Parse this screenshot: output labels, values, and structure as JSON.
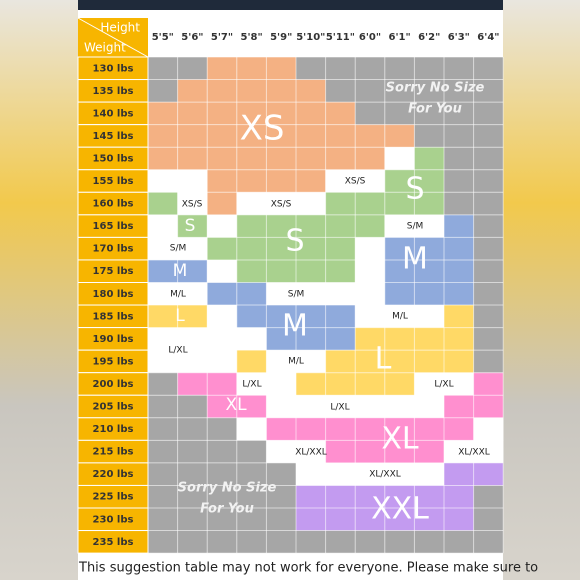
{
  "corner": {
    "height": "Height",
    "weight": "Weight"
  },
  "columns": [
    "5'5\"",
    "5'6\"",
    "5'7\"",
    "5'8\"",
    "5'9\"",
    "5'10\"",
    "5'11\"",
    "6'0\"",
    "6'1\"",
    "6'2\"",
    "6'3\"",
    "6'4\""
  ],
  "rows": [
    "130 lbs",
    "135 lbs",
    "140 lbs",
    "145 lbs",
    "150 lbs",
    "155 lbs",
    "160 lbs",
    "165 lbs",
    "170 lbs",
    "175 lbs",
    "180 lbs",
    "185 lbs",
    "190 lbs",
    "195 lbs",
    "200 lbs",
    "205 lbs",
    "210 lbs",
    "215 lbs",
    "220 lbs",
    "225 lbs",
    "230 lbs",
    "235 lbs"
  ],
  "labels": [
    "XS",
    "S",
    "S",
    "M",
    "M",
    "L",
    "XL",
    "XXL",
    "S",
    "M",
    "L",
    "XL",
    "XS/S",
    "XS/S",
    "XS/S",
    "S/M",
    "S/M",
    "M/L",
    "S/M",
    "M/L",
    "L/XL",
    "M/L",
    "L/XL",
    "L/XL",
    "L/XL",
    "XL/XXL",
    "XL/XXL",
    "XL/XXL"
  ],
  "no_size": [
    {
      "line1": "Sorry No Size",
      "line2": "For You"
    },
    {
      "line1": "Sorry No Size",
      "line2": "For You"
    }
  ],
  "footer": "This suggestion table may not work for everyone. Please make sure to"
}
